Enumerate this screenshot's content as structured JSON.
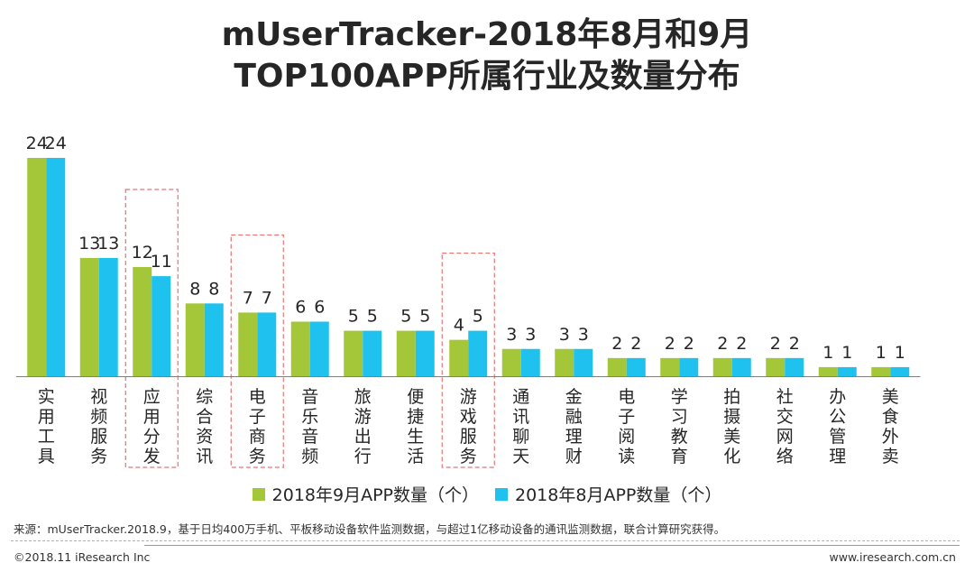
{
  "title_line1": "mUserTracker-2018年8月和9月",
  "title_line2": "TOP100APP所属行业及数量分布",
  "colors": {
    "sep": "#a4c639",
    "aug": "#1fc2ee",
    "highlight": "#e57373",
    "axis": "#7f7f7f"
  },
  "chart_data": {
    "type": "bar",
    "title": "mUserTracker-2018年8月和9月 TOP100APP所属行业及数量分布",
    "xlabel": "",
    "ylabel": "",
    "ylim": [
      0,
      24
    ],
    "grid": false,
    "legend_position": "bottom",
    "categories": [
      "实用工具",
      "视频服务",
      "应用分发",
      "综合资讯",
      "电子商务",
      "音乐音频",
      "旅游出行",
      "便捷生活",
      "游戏服务",
      "通讯聊天",
      "金融理财",
      "电子阅读",
      "学习教育",
      "拍摄美化",
      "社交网络",
      "办公管理",
      "美食外卖"
    ],
    "series": [
      {
        "name": "2018年9月APP数量（个）",
        "values": [
          24,
          13,
          12,
          8,
          7,
          6,
          5,
          5,
          4,
          3,
          3,
          2,
          2,
          2,
          2,
          1,
          1
        ]
      },
      {
        "name": "2018年8月APP数量（个）",
        "values": [
          24,
          13,
          11,
          8,
          7,
          6,
          5,
          5,
          5,
          3,
          3,
          2,
          2,
          2,
          2,
          1,
          1
        ]
      }
    ],
    "highlighted_categories": [
      "应用分发",
      "电子商务",
      "游戏服务"
    ]
  },
  "source_note": "来源：mUserTracker.2018.9，基于日均400万手机、平板移动设备软件监测数据，与超过1亿移动设备的通讯监测数据，联合计算研究获得。",
  "copyright": "©2018.11 iResearch Inc",
  "website": "www.iresearch.com.cn"
}
